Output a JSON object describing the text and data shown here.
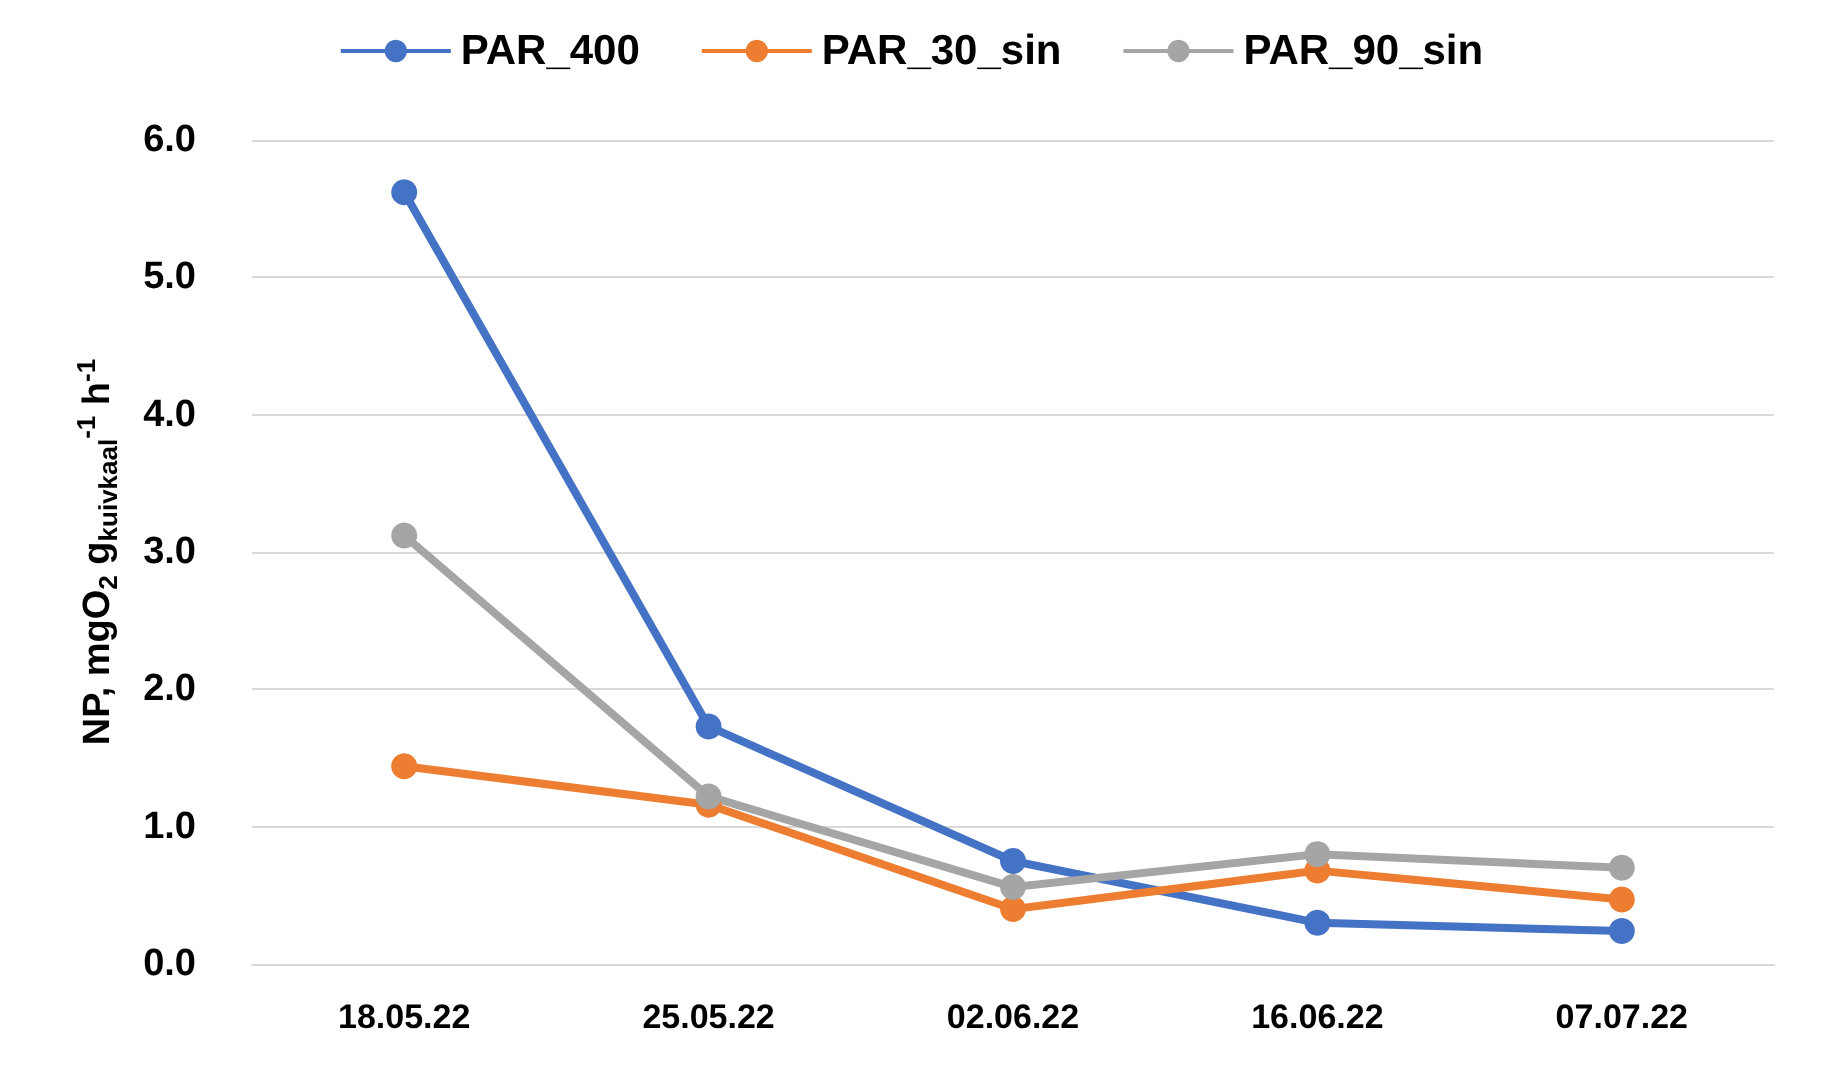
{
  "chart_data": {
    "type": "line",
    "ylabel": "NP, mgO$_{2}$ g$_{kuivkaal}$$^{-1}$ h$^{-1}$",
    "categories": [
      "18.05.22",
      "25.05.22",
      "02.06.22",
      "16.06.22",
      "07.07.22"
    ],
    "series": [
      {
        "name": "PAR_400",
        "color": "#4472c4",
        "values": [
          5.62,
          1.73,
          0.75,
          0.3,
          0.24
        ]
      },
      {
        "name": "PAR_30_sin",
        "color": "#ed7d31",
        "values": [
          1.44,
          1.16,
          0.4,
          0.68,
          0.47
        ]
      },
      {
        "name": "PAR_90_sin",
        "color": "#a5a5a5",
        "values": [
          3.12,
          1.22,
          0.56,
          0.8,
          0.7
        ]
      }
    ],
    "ylim": [
      0,
      6
    ],
    "yticks": [
      {
        "value": 0,
        "label": "0.0"
      },
      {
        "value": 1,
        "label": "1.0"
      },
      {
        "value": 2,
        "label": "2.0"
      },
      {
        "value": 3,
        "label": "3.0"
      },
      {
        "value": 4,
        "label": "4.0"
      },
      {
        "value": 5,
        "label": "5.0"
      },
      {
        "value": 6,
        "label": "6.0"
      }
    ],
    "grid": "y",
    "legend": "top",
    "marker": "circle",
    "line_style": "solid"
  }
}
